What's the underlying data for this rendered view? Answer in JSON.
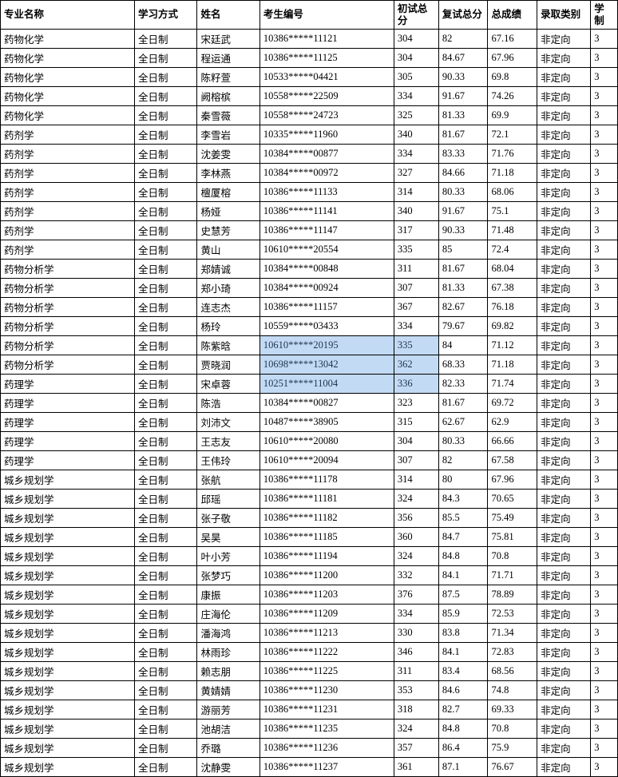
{
  "columns": [
    {
      "key": "major",
      "label": "专业名称"
    },
    {
      "key": "mode",
      "label": "学习方式"
    },
    {
      "key": "name",
      "label": "姓名"
    },
    {
      "key": "id",
      "label": "考生编号"
    },
    {
      "key": "s1",
      "label": "初试总分"
    },
    {
      "key": "s2",
      "label": "复试总分"
    },
    {
      "key": "total",
      "label": "总成绩"
    },
    {
      "key": "type",
      "label": "录取类别"
    },
    {
      "key": "dur",
      "label": "学制"
    }
  ],
  "rows": [
    {
      "major": "药物化学",
      "mode": "全日制",
      "name": "宋廷武",
      "id": "10386*****11121",
      "s1": "304",
      "s2": "82",
      "total": "67.16",
      "type": "非定向",
      "dur": "3"
    },
    {
      "major": "药物化学",
      "mode": "全日制",
      "name": "程运通",
      "id": "10386*****11125",
      "s1": "304",
      "s2": "84.67",
      "total": "67.96",
      "type": "非定向",
      "dur": "3"
    },
    {
      "major": "药物化学",
      "mode": "全日制",
      "name": "陈籽萱",
      "id": "10533*****04421",
      "s1": "305",
      "s2": "90.33",
      "total": "69.8",
      "type": "非定向",
      "dur": "3"
    },
    {
      "major": "药物化学",
      "mode": "全日制",
      "name": "阙榕槟",
      "id": "10558*****22509",
      "s1": "334",
      "s2": "91.67",
      "total": "74.26",
      "type": "非定向",
      "dur": "3"
    },
    {
      "major": "药物化学",
      "mode": "全日制",
      "name": "秦雪薇",
      "id": "10558*****24723",
      "s1": "325",
      "s2": "81.33",
      "total": "69.9",
      "type": "非定向",
      "dur": "3"
    },
    {
      "major": "药剂学",
      "mode": "全日制",
      "name": "李雪岩",
      "id": "10335*****11960",
      "s1": "340",
      "s2": "81.67",
      "total": "72.1",
      "type": "非定向",
      "dur": "3"
    },
    {
      "major": "药剂学",
      "mode": "全日制",
      "name": "沈姜雯",
      "id": "10384*****00877",
      "s1": "334",
      "s2": "83.33",
      "total": "71.76",
      "type": "非定向",
      "dur": "3"
    },
    {
      "major": "药剂学",
      "mode": "全日制",
      "name": "李林燕",
      "id": "10384*****00972",
      "s1": "327",
      "s2": "84.66",
      "total": "71.18",
      "type": "非定向",
      "dur": "3"
    },
    {
      "major": "药剂学",
      "mode": "全日制",
      "name": "檀厦榕",
      "id": "10386*****11133",
      "s1": "314",
      "s2": "80.33",
      "total": "68.06",
      "type": "非定向",
      "dur": "3"
    },
    {
      "major": "药剂学",
      "mode": "全日制",
      "name": "杨娅",
      "id": "10386*****11141",
      "s1": "340",
      "s2": "91.67",
      "total": "75.1",
      "type": "非定向",
      "dur": "3"
    },
    {
      "major": "药剂学",
      "mode": "全日制",
      "name": "史慧芳",
      "id": "10386*****11147",
      "s1": "317",
      "s2": "90.33",
      "total": "71.48",
      "type": "非定向",
      "dur": "3"
    },
    {
      "major": "药剂学",
      "mode": "全日制",
      "name": "黄山",
      "id": "10610*****20554",
      "s1": "335",
      "s2": "85",
      "total": "72.4",
      "type": "非定向",
      "dur": "3"
    },
    {
      "major": "药物分析学",
      "mode": "全日制",
      "name": "郑婧诚",
      "id": "10384*****00848",
      "s1": "311",
      "s2": "81.67",
      "total": "68.04",
      "type": "非定向",
      "dur": "3"
    },
    {
      "major": "药物分析学",
      "mode": "全日制",
      "name": "郑小琦",
      "id": "10384*****00924",
      "s1": "307",
      "s2": "81.33",
      "total": "67.38",
      "type": "非定向",
      "dur": "3"
    },
    {
      "major": "药物分析学",
      "mode": "全日制",
      "name": "连志杰",
      "id": "10386*****11157",
      "s1": "367",
      "s2": "82.67",
      "total": "76.18",
      "type": "非定向",
      "dur": "3"
    },
    {
      "major": "药物分析学",
      "mode": "全日制",
      "name": "杨玲",
      "id": "10559*****03433",
      "s1": "334",
      "s2": "79.67",
      "total": "69.82",
      "type": "非定向",
      "dur": "3"
    },
    {
      "major": "药物分析学",
      "mode": "全日制",
      "name": "陈紫晗",
      "id": "10610*****20195",
      "s1": "335",
      "s2": "84",
      "total": "71.12",
      "type": "非定向",
      "dur": "3",
      "wm": true
    },
    {
      "major": "药物分析学",
      "mode": "全日制",
      "name": "贾晓润",
      "id": "10698*****13042",
      "s1": "362",
      "s2": "68.33",
      "total": "71.18",
      "type": "非定向",
      "dur": "3",
      "wm": true
    },
    {
      "major": "药理学",
      "mode": "全日制",
      "name": "宋卓蓉",
      "id": "10251*****11004",
      "s1": "336",
      "s2": "82.33",
      "total": "71.74",
      "type": "非定向",
      "dur": "3",
      "wm": true
    },
    {
      "major": "药理学",
      "mode": "全日制",
      "name": "陈浩",
      "id": "10384*****00827",
      "s1": "323",
      "s2": "81.67",
      "total": "69.72",
      "type": "非定向",
      "dur": "3"
    },
    {
      "major": "药理学",
      "mode": "全日制",
      "name": "刘沛文",
      "id": "10487*****38905",
      "s1": "315",
      "s2": "62.67",
      "total": "62.9",
      "type": "非定向",
      "dur": "3"
    },
    {
      "major": "药理学",
      "mode": "全日制",
      "name": "王志友",
      "id": "10610*****20080",
      "s1": "304",
      "s2": "80.33",
      "total": "66.66",
      "type": "非定向",
      "dur": "3"
    },
    {
      "major": "药理学",
      "mode": "全日制",
      "name": "王伟玲",
      "id": "10610*****20094",
      "s1": "307",
      "s2": "82",
      "total": "67.58",
      "type": "非定向",
      "dur": "3"
    },
    {
      "major": "城乡规划学",
      "mode": "全日制",
      "name": "张航",
      "id": "10386*****11178",
      "s1": "314",
      "s2": "80",
      "total": "67.96",
      "type": "非定向",
      "dur": "3"
    },
    {
      "major": "城乡规划学",
      "mode": "全日制",
      "name": "邱瑶",
      "id": "10386*****11181",
      "s1": "324",
      "s2": "84.3",
      "total": "70.65",
      "type": "非定向",
      "dur": "3"
    },
    {
      "major": "城乡规划学",
      "mode": "全日制",
      "name": "张子敬",
      "id": "10386*****11182",
      "s1": "356",
      "s2": "85.5",
      "total": "75.49",
      "type": "非定向",
      "dur": "3"
    },
    {
      "major": "城乡规划学",
      "mode": "全日制",
      "name": "吴昊",
      "id": "10386*****11185",
      "s1": "360",
      "s2": "84.7",
      "total": "75.81",
      "type": "非定向",
      "dur": "3"
    },
    {
      "major": "城乡规划学",
      "mode": "全日制",
      "name": "叶小芳",
      "id": "10386*****11194",
      "s1": "324",
      "s2": "84.8",
      "total": "70.8",
      "type": "非定向",
      "dur": "3"
    },
    {
      "major": "城乡规划学",
      "mode": "全日制",
      "name": "张梦巧",
      "id": "10386*****11200",
      "s1": "332",
      "s2": "84.1",
      "total": "71.71",
      "type": "非定向",
      "dur": "3"
    },
    {
      "major": "城乡规划学",
      "mode": "全日制",
      "name": "康振",
      "id": "10386*****11203",
      "s1": "376",
      "s2": "87.5",
      "total": "78.89",
      "type": "非定向",
      "dur": "3"
    },
    {
      "major": "城乡规划学",
      "mode": "全日制",
      "name": "庄海伦",
      "id": "10386*****11209",
      "s1": "334",
      "s2": "85.9",
      "total": "72.53",
      "type": "非定向",
      "dur": "3"
    },
    {
      "major": "城乡规划学",
      "mode": "全日制",
      "name": "潘海鸿",
      "id": "10386*****11213",
      "s1": "330",
      "s2": "83.8",
      "total": "71.34",
      "type": "非定向",
      "dur": "3"
    },
    {
      "major": "城乡规划学",
      "mode": "全日制",
      "name": "林雨珍",
      "id": "10386*****11222",
      "s1": "346",
      "s2": "84.1",
      "total": "72.83",
      "type": "非定向",
      "dur": "3"
    },
    {
      "major": "城乡规划学",
      "mode": "全日制",
      "name": "赖志朋",
      "id": "10386*****11225",
      "s1": "311",
      "s2": "83.4",
      "total": "68.56",
      "type": "非定向",
      "dur": "3"
    },
    {
      "major": "城乡规划学",
      "mode": "全日制",
      "name": "黄婧婧",
      "id": "10386*****11230",
      "s1": "353",
      "s2": "84.6",
      "total": "74.8",
      "type": "非定向",
      "dur": "3"
    },
    {
      "major": "城乡规划学",
      "mode": "全日制",
      "name": "游丽芳",
      "id": "10386*****11231",
      "s1": "318",
      "s2": "82.7",
      "total": "69.33",
      "type": "非定向",
      "dur": "3"
    },
    {
      "major": "城乡规划学",
      "mode": "全日制",
      "name": "池胡洁",
      "id": "10386*****11235",
      "s1": "324",
      "s2": "84.8",
      "total": "70.8",
      "type": "非定向",
      "dur": "3"
    },
    {
      "major": "城乡规划学",
      "mode": "全日制",
      "name": "乔璐",
      "id": "10386*****11236",
      "s1": "357",
      "s2": "86.4",
      "total": "75.9",
      "type": "非定向",
      "dur": "3"
    },
    {
      "major": "城乡规划学",
      "mode": "全日制",
      "name": "沈静雯",
      "id": "10386*****11237",
      "s1": "361",
      "s2": "87.1",
      "total": "76.67",
      "type": "非定向",
      "dur": "3"
    }
  ],
  "col_classes": [
    "col-major",
    "col-mode",
    "col-name",
    "col-id",
    "col-s1",
    "col-s2",
    "col-total",
    "col-type",
    "col-dur"
  ]
}
